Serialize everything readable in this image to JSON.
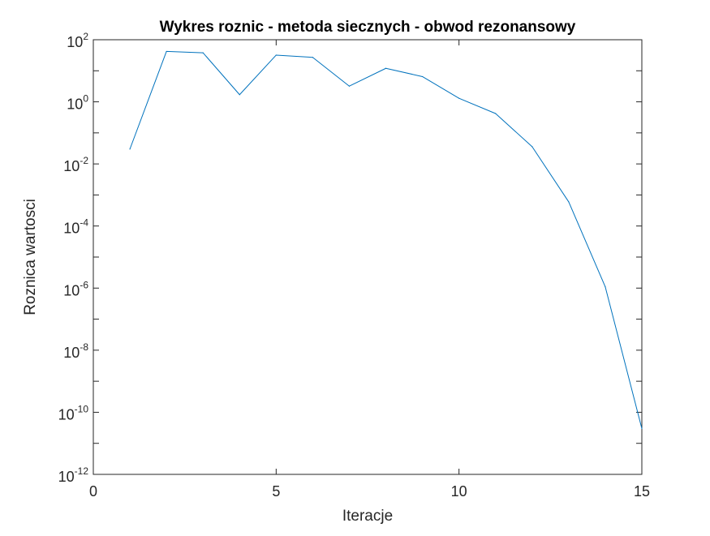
{
  "chart_data": {
    "type": "line",
    "title": "Wykres roznic - metoda siecznych - obwod rezonansowy",
    "xlabel": "Iteracje",
    "ylabel": "Roznica wartosci",
    "xlim": [
      0,
      15
    ],
    "ylim": [
      1e-12,
      100
    ],
    "yscale": "log",
    "grid": false,
    "legend": "none",
    "box": true,
    "x_ticks": [
      "0",
      "5",
      "10",
      "15"
    ],
    "y_ticks": [
      {
        "base": "10",
        "exp": "-12"
      },
      {
        "base": "10",
        "exp": "-10"
      },
      {
        "base": "10",
        "exp": "-8"
      },
      {
        "base": "10",
        "exp": "-6"
      },
      {
        "base": "10",
        "exp": "-4"
      },
      {
        "base": "10",
        "exp": "-2"
      },
      {
        "base": "10",
        "exp": "0"
      },
      {
        "base": "10",
        "exp": "2"
      }
    ],
    "series": [
      {
        "color": "#0072BD",
        "x": [
          1,
          2,
          3,
          4,
          5,
          6,
          7,
          8,
          9,
          10,
          11,
          12,
          13,
          14,
          15
        ],
        "y": [
          0.03,
          42,
          38,
          1.7,
          32,
          27,
          3.2,
          12,
          6.5,
          1.3,
          0.42,
          0.036,
          0.0006,
          1.1e-06,
          3e-11
        ]
      }
    ]
  }
}
